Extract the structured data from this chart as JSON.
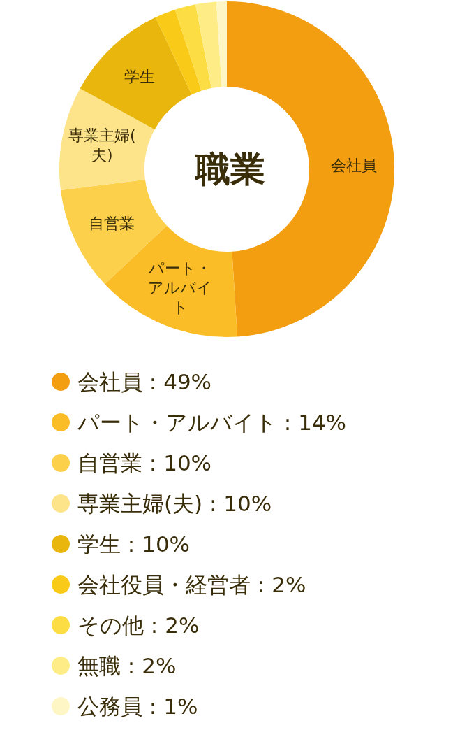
{
  "chart_data": {
    "type": "donut",
    "title": "職業",
    "categories": [
      "会社員",
      "パート・アルバイト",
      "自営業",
      "専業主婦(夫)",
      "学生",
      "会社役員・経営者",
      "その他",
      "無職",
      "公務員"
    ],
    "values": [
      49,
      14,
      10,
      10,
      10,
      2,
      2,
      2,
      1
    ],
    "value_labels": [
      ": 49%",
      ": 14%",
      ": 10%",
      ": 10%",
      ": 10%",
      ": 2%",
      ": 2%",
      ": 2%",
      ": 1%"
    ],
    "colors": [
      "#f29e10",
      "#fbbd27",
      "#fcd04a",
      "#fde38a",
      "#e9b60e",
      "#f9cb18",
      "#fddd44",
      "#feed86",
      "#fef6c4"
    ],
    "legend": "bottom"
  }
}
